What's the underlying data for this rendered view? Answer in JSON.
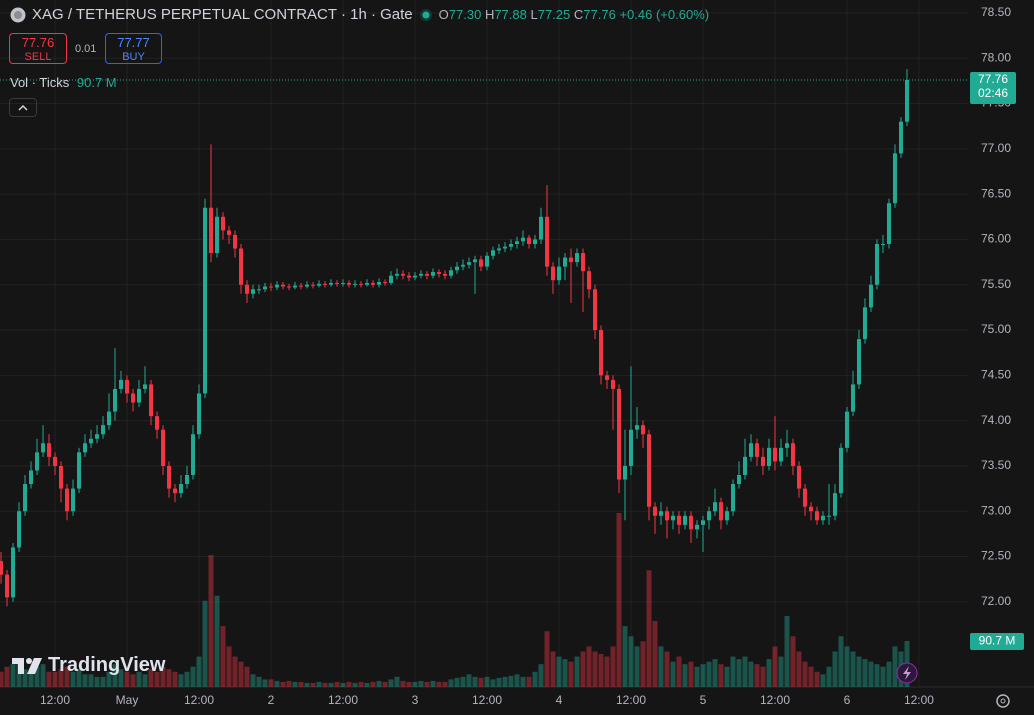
{
  "header": {
    "symbol": "XAG / TETHERUS PERPETUAL CONTRACT · 1h · Gate",
    "ohlc": [
      {
        "key": "O",
        "value": "77.30"
      },
      {
        "key": "H",
        "value": "77.88"
      },
      {
        "key": "L",
        "value": "77.25"
      },
      {
        "key": "C",
        "value": "77.76"
      }
    ],
    "change": "+0.46 (+0.60%)"
  },
  "trade": {
    "sell_price": "77.76",
    "sell": "SELL",
    "spread": "0.01",
    "buy_price": "77.77",
    "buy": "BUY"
  },
  "volume_legend": {
    "label": "Vol · Ticks",
    "value": "90.7 M"
  },
  "watermark": "TradingView",
  "chart_data": {
    "type": "candlestick",
    "open": [
      72.45,
      72.3,
      72.05,
      72.6,
      73.0,
      73.3,
      73.45,
      73.65,
      73.75,
      73.6,
      73.5,
      73.25,
      73.0,
      73.25,
      73.65,
      73.75,
      73.8,
      73.85,
      73.95,
      74.1,
      74.35,
      74.45,
      74.3,
      74.2,
      74.35,
      74.4,
      74.05,
      73.9,
      73.5,
      73.25,
      73.2,
      73.3,
      73.4,
      73.85,
      74.3,
      76.35,
      75.85,
      76.25,
      76.1,
      76.05,
      75.9,
      75.5,
      75.4,
      75.45,
      75.45,
      75.48,
      75.47,
      75.5,
      75.48,
      75.47,
      75.49,
      75.48,
      75.5,
      75.49,
      75.51,
      75.5,
      75.52,
      75.51,
      75.52,
      75.5,
      75.51,
      75.5,
      75.52,
      75.5,
      75.53,
      75.52,
      75.6,
      75.62,
      75.6,
      75.58,
      75.6,
      75.62,
      75.6,
      75.64,
      75.62,
      75.6,
      75.66,
      75.7,
      75.72,
      75.75,
      75.78,
      75.7,
      75.82,
      75.88,
      75.9,
      75.92,
      75.95,
      75.98,
      76.02,
      75.95,
      76.0,
      76.25,
      75.7,
      75.55,
      75.7,
      75.8,
      75.75,
      75.85,
      75.65,
      75.45,
      75.0,
      74.5,
      74.45,
      74.35,
      73.35,
      73.5,
      73.9,
      73.95,
      73.85,
      73.05,
      72.95,
      73.0,
      72.9,
      72.95,
      72.85,
      72.95,
      72.8,
      72.85,
      72.9,
      73.0,
      73.1,
      72.9,
      73.0,
      73.3,
      73.4,
      73.6,
      73.75,
      73.6,
      73.5,
      73.7,
      73.55,
      73.7,
      73.75,
      73.5,
      73.25,
      73.05,
      73.0,
      72.9,
      72.95,
      72.95,
      73.2,
      73.7,
      74.1,
      74.4,
      74.9,
      75.25,
      75.5,
      75.95,
      75.95,
      76.4,
      76.95,
      77.3
    ],
    "high": [
      72.55,
      72.35,
      72.65,
      73.1,
      73.4,
      73.55,
      73.8,
      73.95,
      73.85,
      73.65,
      73.55,
      73.3,
      73.35,
      73.7,
      73.85,
      73.9,
      73.95,
      74.05,
      74.3,
      74.8,
      74.55,
      74.5,
      74.35,
      74.45,
      74.6,
      74.45,
      74.1,
      73.95,
      73.55,
      73.3,
      73.4,
      73.5,
      73.95,
      74.4,
      76.45,
      77.05,
      76.35,
      76.3,
      76.15,
      76.1,
      75.95,
      75.55,
      75.5,
      75.5,
      75.52,
      75.52,
      75.54,
      75.53,
      75.51,
      75.53,
      75.52,
      75.54,
      75.53,
      75.55,
      75.54,
      75.56,
      75.55,
      75.56,
      75.55,
      75.55,
      75.54,
      75.56,
      75.55,
      75.57,
      75.56,
      75.65,
      75.68,
      75.66,
      75.64,
      75.64,
      75.66,
      75.65,
      75.68,
      75.67,
      75.66,
      75.7,
      75.75,
      75.78,
      75.8,
      75.82,
      75.82,
      75.86,
      75.92,
      75.95,
      75.97,
      76.0,
      76.03,
      76.1,
      76.05,
      76.05,
      76.35,
      76.6,
      75.75,
      75.8,
      75.85,
      75.9,
      75.9,
      75.9,
      75.7,
      75.5,
      75.05,
      74.55,
      74.5,
      74.4,
      73.9,
      74.6,
      74.15,
      74.0,
      73.9,
      73.1,
      73.1,
      73.05,
      73.0,
      73.0,
      73.0,
      73.0,
      72.9,
      72.95,
      73.05,
      73.25,
      73.15,
      73.05,
      73.35,
      73.55,
      73.8,
      73.85,
      73.8,
      73.7,
      73.8,
      74.05,
      73.8,
      73.9,
      73.8,
      73.55,
      73.3,
      73.1,
      73.05,
      73.0,
      73.3,
      73.3,
      73.75,
      74.15,
      74.55,
      75.0,
      75.35,
      75.6,
      76.0,
      76.05,
      76.45,
      77.05,
      77.35,
      77.88
    ],
    "low": [
      72.2,
      71.95,
      72.0,
      72.55,
      72.95,
      73.25,
      73.4,
      73.6,
      73.5,
      73.4,
      73.1,
      72.9,
      72.95,
      73.2,
      73.6,
      73.7,
      73.75,
      73.8,
      73.9,
      74.0,
      74.3,
      74.2,
      74.1,
      74.15,
      74.3,
      73.95,
      73.8,
      73.4,
      73.15,
      73.1,
      73.15,
      73.25,
      73.35,
      73.8,
      74.25,
      75.75,
      75.8,
      76.0,
      75.95,
      75.8,
      75.4,
      75.3,
      75.35,
      75.4,
      75.42,
      75.43,
      75.44,
      75.45,
      75.44,
      75.45,
      75.45,
      75.46,
      75.46,
      75.47,
      75.47,
      75.48,
      75.48,
      75.48,
      75.47,
      75.47,
      75.47,
      75.48,
      75.47,
      75.47,
      75.49,
      75.5,
      75.56,
      75.56,
      75.54,
      75.55,
      75.57,
      75.56,
      75.57,
      75.58,
      75.56,
      75.57,
      75.62,
      75.66,
      75.68,
      75.4,
      75.65,
      75.66,
      75.78,
      75.84,
      75.86,
      75.88,
      75.9,
      75.93,
      75.9,
      75.9,
      75.95,
      75.6,
      75.4,
      75.5,
      75.55,
      75.3,
      75.7,
      75.2,
      75.35,
      74.9,
      74.4,
      74.35,
      73.9,
      73.2,
      72.9,
      73.4,
      73.8,
      73.7,
      72.9,
      72.75,
      72.85,
      72.7,
      72.8,
      72.75,
      72.8,
      72.65,
      72.7,
      72.55,
      72.8,
      72.95,
      72.8,
      72.85,
      72.95,
      73.25,
      73.35,
      73.55,
      73.5,
      73.4,
      73.45,
      73.45,
      73.5,
      73.6,
      73.4,
      73.15,
      72.95,
      72.9,
      72.85,
      72.85,
      72.85,
      72.9,
      73.15,
      73.65,
      74.05,
      74.35,
      74.85,
      75.2,
      75.45,
      75.85,
      75.9,
      76.35,
      76.9,
      77.25
    ],
    "close": [
      72.3,
      72.05,
      72.6,
      73.0,
      73.3,
      73.45,
      73.65,
      73.75,
      73.6,
      73.5,
      73.25,
      73.0,
      73.25,
      73.65,
      73.75,
      73.8,
      73.85,
      73.95,
      74.1,
      74.35,
      74.45,
      74.3,
      74.2,
      74.35,
      74.4,
      74.05,
      73.9,
      73.5,
      73.25,
      73.2,
      73.3,
      73.4,
      73.85,
      74.3,
      76.35,
      75.85,
      76.25,
      76.1,
      76.05,
      75.9,
      75.5,
      75.4,
      75.45,
      75.45,
      75.48,
      75.47,
      75.5,
      75.48,
      75.47,
      75.49,
      75.48,
      75.5,
      75.49,
      75.51,
      75.5,
      75.52,
      75.51,
      75.52,
      75.5,
      75.51,
      75.5,
      75.52,
      75.5,
      75.53,
      75.52,
      75.6,
      75.62,
      75.6,
      75.58,
      75.6,
      75.62,
      75.6,
      75.64,
      75.62,
      75.6,
      75.66,
      75.7,
      75.72,
      75.75,
      75.78,
      75.7,
      75.82,
      75.88,
      75.9,
      75.92,
      75.95,
      75.98,
      76.02,
      75.95,
      76.0,
      76.25,
      75.7,
      75.55,
      75.7,
      75.8,
      75.75,
      75.85,
      75.65,
      75.45,
      75.0,
      74.5,
      74.45,
      74.35,
      73.35,
      73.5,
      73.9,
      73.95,
      73.85,
      73.05,
      72.95,
      73.0,
      72.9,
      72.95,
      72.85,
      72.95,
      72.8,
      72.85,
      72.9,
      73.0,
      73.1,
      72.9,
      73.0,
      73.3,
      73.4,
      73.6,
      73.75,
      73.6,
      73.5,
      73.7,
      73.55,
      73.7,
      73.75,
      73.5,
      73.25,
      73.05,
      73.0,
      72.9,
      72.95,
      72.95,
      73.2,
      73.7,
      74.1,
      74.4,
      74.9,
      75.25,
      75.5,
      75.95,
      75.95,
      76.4,
      76.95,
      77.3,
      77.76
    ],
    "volume": [
      30,
      40,
      45,
      50,
      35,
      30,
      40,
      45,
      30,
      30,
      35,
      40,
      30,
      35,
      25,
      25,
      20,
      20,
      30,
      45,
      35,
      30,
      25,
      30,
      25,
      35,
      30,
      40,
      35,
      30,
      25,
      30,
      40,
      60,
      170,
      260,
      180,
      120,
      80,
      60,
      50,
      40,
      25,
      20,
      15,
      15,
      12,
      10,
      12,
      10,
      10,
      8,
      8,
      10,
      8,
      8,
      10,
      8,
      10,
      8,
      10,
      8,
      10,
      12,
      10,
      15,
      20,
      12,
      10,
      10,
      12,
      10,
      12,
      10,
      10,
      15,
      18,
      20,
      25,
      20,
      18,
      20,
      15,
      18,
      20,
      22,
      25,
      20,
      20,
      30,
      45,
      110,
      70,
      60,
      55,
      50,
      60,
      70,
      80,
      70,
      65,
      60,
      80,
      343,
      120,
      100,
      80,
      90,
      230,
      130,
      80,
      70,
      50,
      60,
      45,
      50,
      40,
      45,
      50,
      55,
      45,
      40,
      60,
      55,
      60,
      50,
      45,
      40,
      55,
      80,
      60,
      140,
      100,
      70,
      50,
      40,
      30,
      25,
      40,
      70,
      100,
      80,
      70,
      60,
      55,
      50,
      45,
      40,
      50,
      80,
      70,
      90.7
    ],
    "volume_label": "90.7 M",
    "last_price_label": "77.76",
    "countdown": "02:46",
    "up_color": "#22ab94",
    "down_color": "#f23645",
    "grid": true,
    "ylim": [
      71.06,
      78.643
    ],
    "yticks": [
      {
        "value": 72,
        "label": "72.00"
      },
      {
        "value": 72.5,
        "label": "72.50"
      },
      {
        "value": 73,
        "label": "73.00"
      },
      {
        "value": 73.5,
        "label": "73.50"
      },
      {
        "value": 74,
        "label": "74.00"
      },
      {
        "value": 74.5,
        "label": "74.50"
      },
      {
        "value": 75,
        "label": "75.00"
      },
      {
        "value": 75.5,
        "label": "75.50"
      },
      {
        "value": 76,
        "label": "76.00"
      },
      {
        "value": 76.5,
        "label": "76.50"
      },
      {
        "value": 77,
        "label": "77.00"
      },
      {
        "value": 77.5,
        "label": "77.50"
      },
      {
        "value": 78,
        "label": "78.00"
      },
      {
        "value": 78.5,
        "label": "78.50"
      }
    ],
    "xlim": [
      -0.17,
      161.17
    ],
    "xticks": [
      {
        "value": 9,
        "label": "12:00"
      },
      {
        "value": 21,
        "label": "May"
      },
      {
        "value": 33,
        "label": "12:00"
      },
      {
        "value": 45,
        "label": "2"
      },
      {
        "value": 57,
        "label": "12:00"
      },
      {
        "value": 69,
        "label": "3"
      },
      {
        "value": 81,
        "label": "12:00"
      },
      {
        "value": 93,
        "label": "4"
      },
      {
        "value": 105,
        "label": "12:00"
      },
      {
        "value": 117,
        "label": "5"
      },
      {
        "value": 129,
        "label": "12:00"
      },
      {
        "value": 141,
        "label": "6"
      },
      {
        "value": 153,
        "label": "12:00"
      }
    ]
  }
}
